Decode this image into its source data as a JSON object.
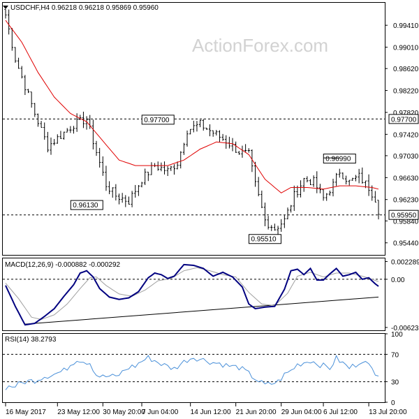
{
  "header": {
    "symbol_line": "USDCHF,H4  0.96218 0.96218 0.95869 0.95960",
    "watermark": "ActionForex.com"
  },
  "colors": {
    "candles": "#000000",
    "ma": "#e00000",
    "macd_main": "#000080",
    "macd_signal": "#a0a0a0",
    "rsi": "#4a90d9",
    "trendline": "#000000",
    "guide": "#000000",
    "highlight_box": "#000000",
    "background": "#ffffff"
  },
  "chart_data": [
    {
      "type": "candlestick",
      "panel": "price",
      "title": "USDCHF,H4",
      "ohlc_header": {
        "open": 0.96218,
        "high": 0.96218,
        "low": 0.95869,
        "close": 0.9596
      },
      "y_ticks": [
        "0.99410",
        "0.99010",
        "0.98620",
        "0.98220",
        "0.97820",
        "0.97420",
        "0.97030",
        "0.96630",
        "0.96230",
        "0.95840",
        "0.95440"
      ],
      "ylim": [
        0.9522,
        0.9982
      ],
      "horizontal_lines": [
        0.977,
        0.9595
      ],
      "price_labels": [
        "0.97700",
        "0.95950"
      ],
      "annotations": [
        {
          "text": "0.97700",
          "x_index": 47,
          "value": 0.977
        },
        {
          "text": "0.96130",
          "x_index": 30,
          "value": 0.9613
        },
        {
          "text": "0.95510",
          "x_index": 80,
          "value": 0.9551
        },
        {
          "text": "0.96990",
          "x_index": 103,
          "value": 0.9699
        }
      ],
      "close_anchors": [
        [
          0,
          0.996
        ],
        [
          3,
          0.988
        ],
        [
          6,
          0.983
        ],
        [
          9,
          0.978
        ],
        [
          13,
          0.972
        ],
        [
          17,
          0.974
        ],
        [
          21,
          0.976
        ],
        [
          25,
          0.977
        ],
        [
          28,
          0.971
        ],
        [
          31,
          0.965
        ],
        [
          34,
          0.963
        ],
        [
          38,
          0.962
        ],
        [
          42,
          0.966
        ],
        [
          46,
          0.9685
        ],
        [
          50,
          0.9675
        ],
        [
          53,
          0.969
        ],
        [
          56,
          0.975
        ],
        [
          60,
          0.976
        ],
        [
          64,
          0.9745
        ],
        [
          68,
          0.973
        ],
        [
          72,
          0.971
        ],
        [
          75,
          0.9705
        ],
        [
          77,
          0.965
        ],
        [
          80,
          0.9585
        ],
        [
          83,
          0.957
        ],
        [
          86,
          0.9585
        ],
        [
          89,
          0.963
        ],
        [
          92,
          0.966
        ],
        [
          95,
          0.9655
        ],
        [
          98,
          0.9625
        ],
        [
          101,
          0.965
        ],
        [
          103,
          0.9675
        ],
        [
          106,
          0.9655
        ],
        [
          109,
          0.9665
        ],
        [
          112,
          0.9645
        ],
        [
          114,
          0.9625
        ],
        [
          115,
          0.9596
        ]
      ],
      "ma_anchors": [
        [
          0,
          0.995
        ],
        [
          5,
          0.991
        ],
        [
          10,
          0.9855
        ],
        [
          15,
          0.981
        ],
        [
          20,
          0.978
        ],
        [
          25,
          0.9765
        ],
        [
          30,
          0.973
        ],
        [
          35,
          0.9695
        ],
        [
          40,
          0.9685
        ],
        [
          45,
          0.9685
        ],
        [
          50,
          0.9685
        ],
        [
          55,
          0.9695
        ],
        [
          60,
          0.9715
        ],
        [
          65,
          0.9728
        ],
        [
          70,
          0.9725
        ],
        [
          75,
          0.9705
        ],
        [
          80,
          0.966
        ],
        [
          85,
          0.9635
        ],
        [
          88,
          0.9645
        ],
        [
          93,
          0.9645
        ],
        [
          98,
          0.9642
        ],
        [
          103,
          0.9648
        ],
        [
          108,
          0.9648
        ],
        [
          113,
          0.9645
        ],
        [
          115,
          0.9642
        ]
      ]
    },
    {
      "type": "line",
      "panel": "macd",
      "title": "MACD(12,26,9) -0.000882 -0.000292",
      "series": [
        {
          "name": "MACD",
          "anchors": [
            [
              0,
              -0.0008
            ],
            [
              3,
              -0.0035
            ],
            [
              6,
              -0.0059
            ],
            [
              9,
              -0.0057
            ],
            [
              12,
              -0.0048
            ],
            [
              15,
              -0.0038
            ],
            [
              18,
              -0.0022
            ],
            [
              21,
              -0.0007
            ],
            [
              23,
              0.0008
            ],
            [
              25,
              0.0011
            ],
            [
              27,
              0.0003
            ],
            [
              29,
              -0.0012
            ],
            [
              32,
              -0.0023
            ],
            [
              35,
              -0.0026
            ],
            [
              38,
              -0.0024
            ],
            [
              41,
              -0.0016
            ],
            [
              44,
              0.0002
            ],
            [
              46,
              0.0008
            ],
            [
              48,
              0.0006
            ],
            [
              50,
              0.0001
            ],
            [
              52,
              0.0004
            ],
            [
              55,
              0.0019
            ],
            [
              58,
              0.0018
            ],
            [
              61,
              0.0014
            ],
            [
              64,
              0.0004
            ],
            [
              67,
              0.0009
            ],
            [
              70,
              0.0003
            ],
            [
              73,
              -0.001
            ],
            [
              75,
              -0.0032
            ],
            [
              77,
              -0.0038
            ],
            [
              80,
              -0.0036
            ],
            [
              83,
              -0.0035
            ],
            [
              86,
              -0.0013
            ],
            [
              88,
              0.0011
            ],
            [
              90,
              0.0013
            ],
            [
              92,
              0.0006
            ],
            [
              94,
              0.0014
            ],
            [
              96,
              -0.0001
            ],
            [
              98,
              -0.0001
            ],
            [
              100,
              0.0007
            ],
            [
              102,
              0.0014
            ],
            [
              104,
              0.0004
            ],
            [
              106,
              0.0006
            ],
            [
              108,
              0.0009
            ],
            [
              110,
              0.0
            ],
            [
              112,
              0.0002
            ],
            [
              114,
              -0.0006
            ],
            [
              115,
              -0.0009
            ]
          ]
        },
        {
          "name": "Signal",
          "anchors": [
            [
              0,
              -0.0005
            ],
            [
              4,
              -0.0025
            ],
            [
              8,
              -0.0049
            ],
            [
              11,
              -0.0052
            ],
            [
              15,
              -0.0046
            ],
            [
              19,
              -0.0032
            ],
            [
              23,
              -0.0012
            ],
            [
              26,
              0.0002
            ],
            [
              28,
              0.0003
            ],
            [
              31,
              -0.0008
            ],
            [
              35,
              -0.0019
            ],
            [
              39,
              -0.0022
            ],
            [
              43,
              -0.0014
            ],
            [
              47,
              -0.0002
            ],
            [
              51,
              0.0001
            ],
            [
              55,
              0.0011
            ],
            [
              59,
              0.0015
            ],
            [
              63,
              0.0011
            ],
            [
              67,
              0.0006
            ],
            [
              71,
              0.0003
            ],
            [
              75,
              -0.0017
            ],
            [
              79,
              -0.0032
            ],
            [
              83,
              -0.0034
            ],
            [
              87,
              -0.0018
            ],
            [
              90,
              0.0004
            ],
            [
              94,
              0.0009
            ],
            [
              98,
              0.0003
            ],
            [
              102,
              0.0008
            ],
            [
              106,
              0.0008
            ],
            [
              110,
              0.0004
            ],
            [
              113,
              0.0
            ],
            [
              115,
              -0.0003
            ]
          ]
        }
      ],
      "trendline": [
        [
          6,
          -0.0058
        ],
        [
          115,
          -0.0023
        ]
      ],
      "y_ticks": [
        "0.002289",
        "0.00",
        "-0.006231"
      ],
      "ylim": [
        -0.0066,
        0.0027
      ]
    },
    {
      "type": "line",
      "panel": "rsi",
      "title": "RSI(14) 38.2793",
      "series": [
        {
          "name": "RSI",
          "anchors": [
            [
              0,
              22
            ],
            [
              3,
              24
            ],
            [
              6,
              30
            ],
            [
              9,
              32
            ],
            [
              12,
              38
            ],
            [
              15,
              41
            ],
            [
              18,
              46
            ],
            [
              20,
              55
            ],
            [
              22,
              63
            ],
            [
              24,
              60
            ],
            [
              26,
              58
            ],
            [
              28,
              40
            ],
            [
              30,
              37
            ],
            [
              32,
              38
            ],
            [
              34,
              37
            ],
            [
              36,
              44
            ],
            [
              38,
              51
            ],
            [
              40,
              53
            ],
            [
              42,
              60
            ],
            [
              44,
              65
            ],
            [
              46,
              61
            ],
            [
              48,
              56
            ],
            [
              50,
              52
            ],
            [
              52,
              49
            ],
            [
              54,
              56
            ],
            [
              56,
              62
            ],
            [
              58,
              66
            ],
            [
              60,
              63
            ],
            [
              62,
              61
            ],
            [
              64,
              58
            ],
            [
              66,
              57
            ],
            [
              68,
              54
            ],
            [
              70,
              52
            ],
            [
              72,
              51
            ],
            [
              74,
              45
            ],
            [
              76,
              38
            ],
            [
              78,
              31
            ],
            [
              80,
              25
            ],
            [
              82,
              27
            ],
            [
              84,
              30
            ],
            [
              86,
              40
            ],
            [
              88,
              46
            ],
            [
              90,
              55
            ],
            [
              92,
              58
            ],
            [
              94,
              61
            ],
            [
              96,
              57
            ],
            [
              98,
              53
            ],
            [
              100,
              50
            ],
            [
              102,
              64
            ],
            [
              104,
              57
            ],
            [
              106,
              50
            ],
            [
              108,
              55
            ],
            [
              110,
              62
            ],
            [
              112,
              53
            ],
            [
              114,
              44
            ],
            [
              115,
              38.3
            ]
          ]
        }
      ],
      "y_ticks": [
        "100",
        "70",
        "30",
        "0"
      ],
      "levels": [
        70,
        30
      ],
      "ylim": [
        0,
        100
      ]
    }
  ],
  "x_axis": {
    "tick_labels": [
      "16 May 2017",
      "23 May 12:00",
      "30 May 20:00",
      "7 Jun 04:00",
      "14 Jun 12:00",
      "21 Jun 20:00",
      "29 Jun 04:00",
      "6 Jul 12:00",
      "13 Jul 20:00"
    ],
    "tick_indices": [
      0,
      16,
      30,
      42,
      57,
      71,
      85,
      98,
      112
    ],
    "bar_count": 116
  }
}
